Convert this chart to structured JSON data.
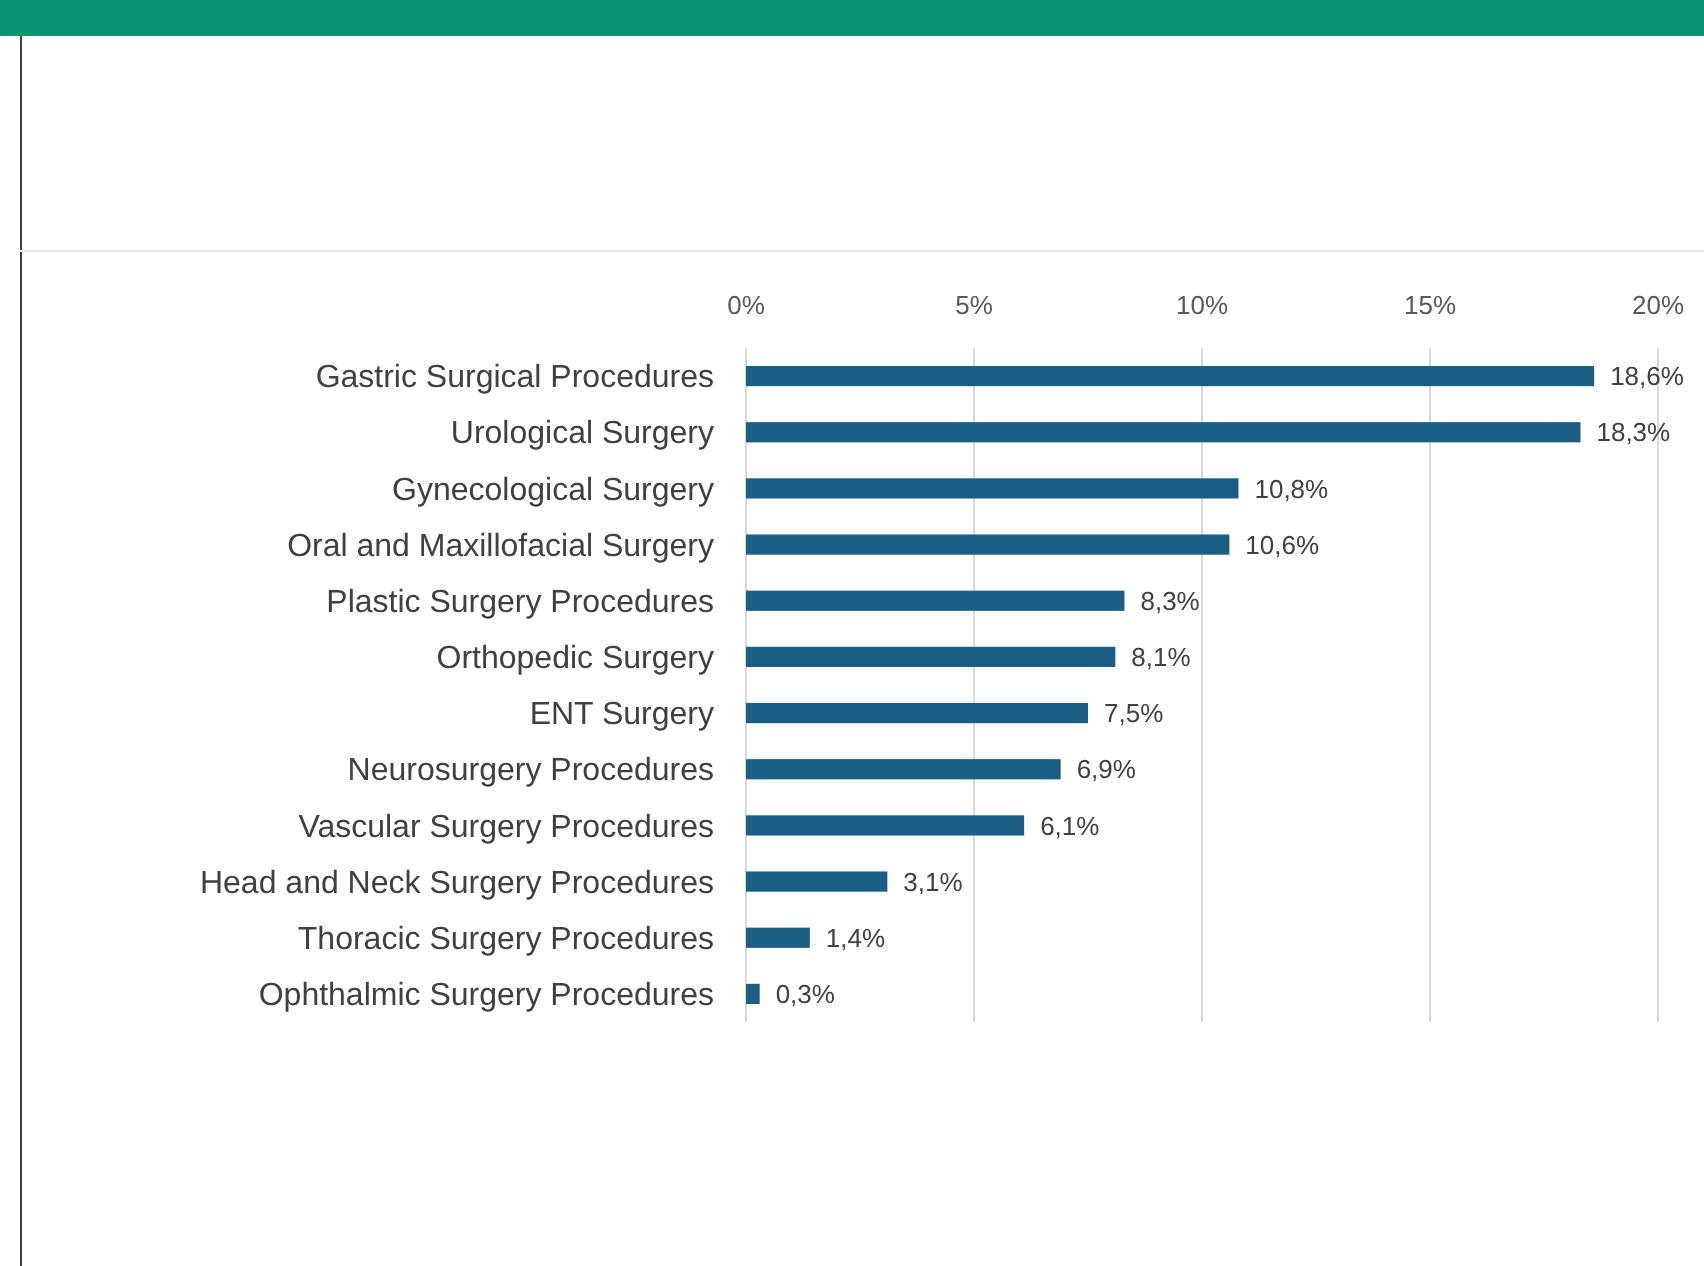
{
  "chart_data": {
    "type": "bar",
    "orientation": "horizontal",
    "categories": [
      "Gastric Surgical Procedures",
      "Urological Surgery",
      "Gynecological Surgery",
      "Oral and Maxillofacial Surgery",
      "Plastic Surgery Procedures",
      "Orthopedic Surgery",
      "ENT Surgery",
      "Neurosurgery Procedures",
      "Vascular Surgery Procedures",
      "Head and Neck Surgery Procedures",
      "Thoracic Surgery Procedures",
      "Ophthalmic Surgery Procedures"
    ],
    "values": [
      18.6,
      18.3,
      10.8,
      10.6,
      8.3,
      8.1,
      7.5,
      6.9,
      6.1,
      3.1,
      1.4,
      0.3
    ],
    "value_labels": [
      "18,6%",
      "18,3%",
      "10,8%",
      "10,6%",
      "8,3%",
      "8,1%",
      "7,5%",
      "6,9%",
      "6,1%",
      "3,1%",
      "1,4%",
      "0,3%"
    ],
    "color": "#1b5e84",
    "xlim": [
      0,
      20
    ],
    "xticks": [
      {
        "value": 0,
        "label": "0%"
      },
      {
        "value": 5,
        "label": "5%"
      },
      {
        "value": 10,
        "label": "10%"
      },
      {
        "value": 15,
        "label": "15%"
      },
      {
        "value": 20,
        "label": "20%"
      }
    ],
    "grid": "x"
  }
}
